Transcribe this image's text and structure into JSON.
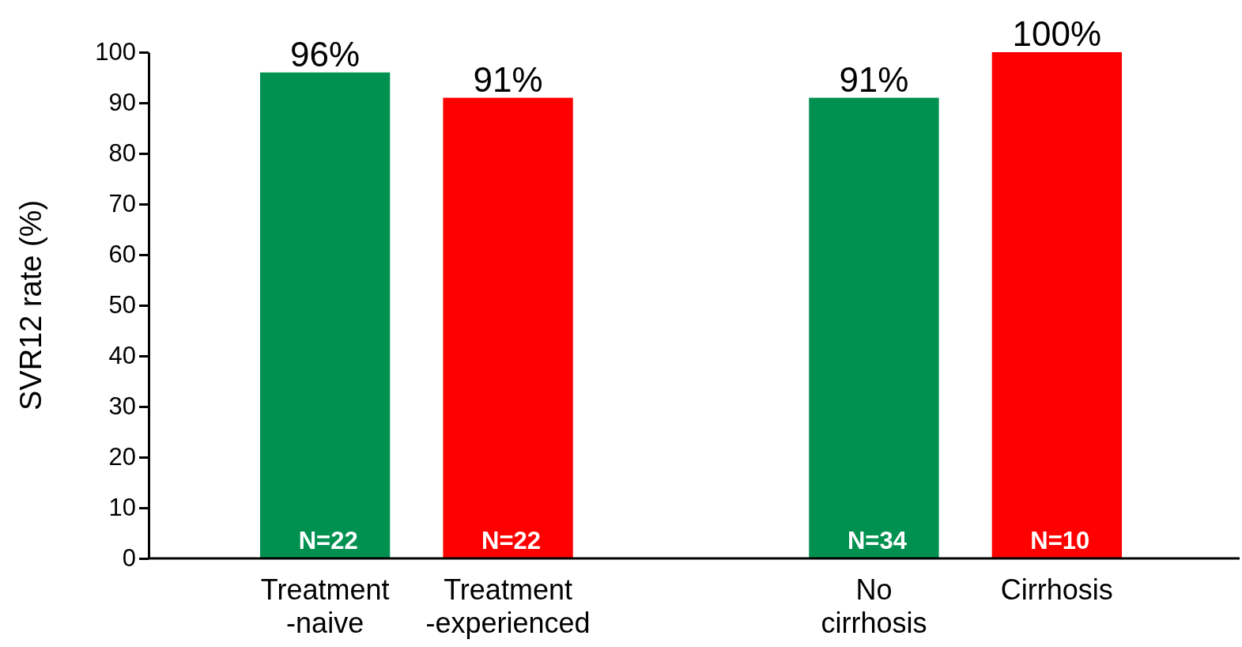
{
  "chart_data": {
    "type": "bar",
    "ylabel": "SVR12 rate (%)",
    "categories": [
      "Treatment\n-naive",
      "Treatment\n-experienced",
      null,
      "No\ncirrhosis",
      "Cirrhosis"
    ],
    "values": [
      96,
      91,
      null,
      91,
      100
    ],
    "colors": [
      "#009150",
      "#ff0000",
      null,
      "#009150",
      "#ff0000"
    ],
    "value_labels": [
      "96%",
      "91%",
      null,
      "91%",
      "100%"
    ],
    "ylim": [
      0,
      100
    ],
    "yticks": [
      0,
      10,
      20,
      30,
      40,
      50,
      60,
      70,
      80,
      90,
      100
    ],
    "grid": false,
    "annotations": [
      {
        "text": "N=22",
        "x": "Treatment\n-naive",
        "y": 0
      },
      {
        "text": "N=22",
        "x": "Treatment\n-experienced",
        "y": 0
      },
      {
        "text": "N=34",
        "x": "No\ncirrhosis",
        "y": 0
      },
      {
        "text": "N=10",
        "x": "Cirrhosis",
        "y": 0
      }
    ]
  }
}
